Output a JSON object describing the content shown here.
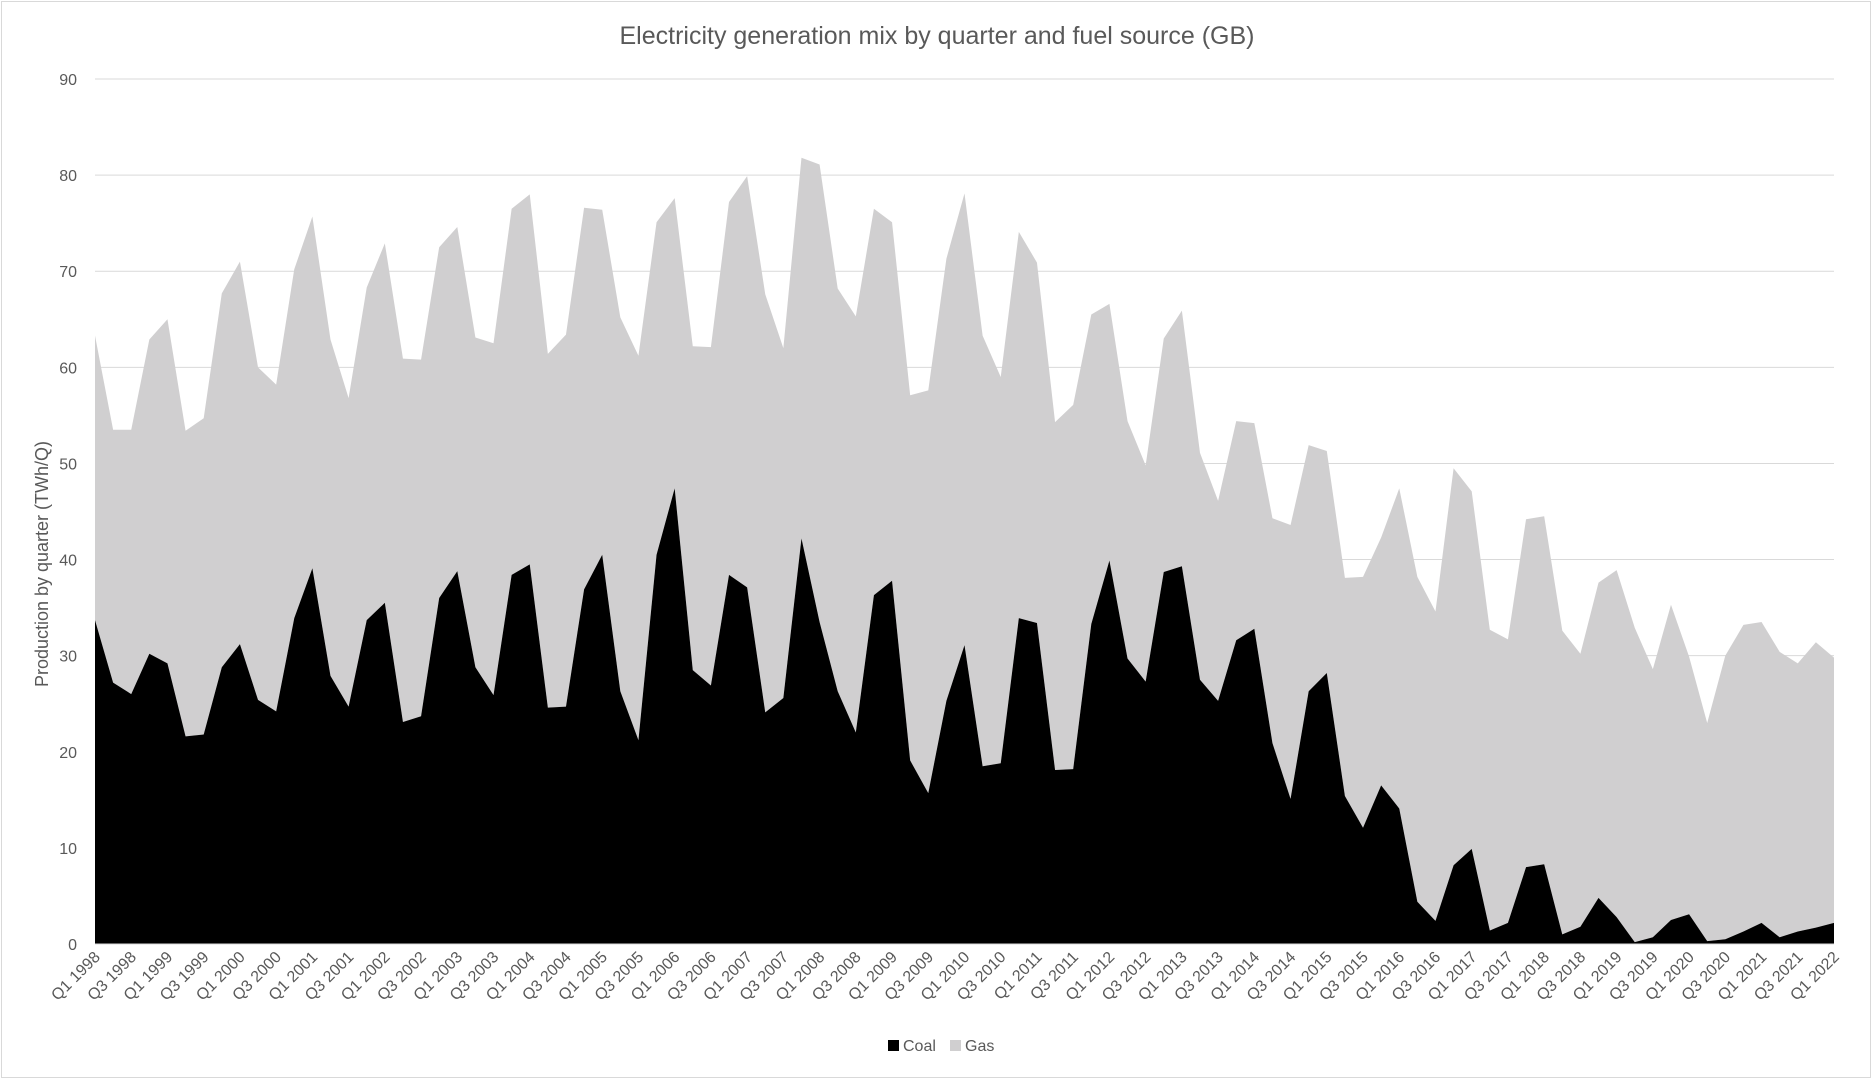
{
  "chart_data": {
    "type": "area",
    "stacked": true,
    "title": "Electricity generation mix by quarter and fuel source (GB)",
    "xlabel": "",
    "ylabel": "Production by quarter (TWh/Q)",
    "ylim": [
      0,
      90
    ],
    "yticks": [
      0,
      10,
      20,
      30,
      40,
      50,
      60,
      70,
      80,
      90
    ],
    "grid": true,
    "legend_position": "bottom",
    "categories": [
      "Q1 1998",
      "Q2 1998",
      "Q3 1998",
      "Q4 1998",
      "Q1 1999",
      "Q2 1999",
      "Q3 1999",
      "Q4 1999",
      "Q1 2000",
      "Q2 2000",
      "Q3 2000",
      "Q4 2000",
      "Q1 2001",
      "Q2 2001",
      "Q3 2001",
      "Q4 2001",
      "Q1 2002",
      "Q2 2002",
      "Q3 2002",
      "Q4 2002",
      "Q1 2003",
      "Q2 2003",
      "Q3 2003",
      "Q4 2003",
      "Q1 2004",
      "Q2 2004",
      "Q3 2004",
      "Q4 2004",
      "Q1 2005",
      "Q2 2005",
      "Q3 2005",
      "Q4 2005",
      "Q1 2006",
      "Q2 2006",
      "Q3 2006",
      "Q4 2006",
      "Q1 2007",
      "Q2 2007",
      "Q3 2007",
      "Q4 2007",
      "Q1 2008",
      "Q2 2008",
      "Q3 2008",
      "Q4 2008",
      "Q1 2009",
      "Q2 2009",
      "Q3 2009",
      "Q4 2009",
      "Q1 2010",
      "Q2 2010",
      "Q3 2010",
      "Q4 2010",
      "Q1 2011",
      "Q2 2011",
      "Q3 2011",
      "Q4 2011",
      "Q1 2012",
      "Q2 2012",
      "Q3 2012",
      "Q4 2012",
      "Q1 2013",
      "Q2 2013",
      "Q3 2013",
      "Q4 2013",
      "Q1 2014",
      "Q2 2014",
      "Q3 2014",
      "Q4 2014",
      "Q1 2015",
      "Q2 2015",
      "Q3 2015",
      "Q4 2015",
      "Q1 2016",
      "Q2 2016",
      "Q3 2016",
      "Q4 2016",
      "Q1 2017",
      "Q2 2017",
      "Q3 2017",
      "Q4 2017",
      "Q1 2018",
      "Q2 2018",
      "Q3 2018",
      "Q4 2018",
      "Q1 2019",
      "Q2 2019",
      "Q3 2019",
      "Q4 2019",
      "Q1 2020",
      "Q2 2020",
      "Q3 2020",
      "Q4 2020",
      "Q1 2021",
      "Q2 2021",
      "Q3 2021",
      "Q4 2021",
      "Q1 2022"
    ],
    "series": [
      {
        "name": "Coal",
        "color": "#000000",
        "values": [
          33.7,
          27.2,
          26.0,
          30.2,
          29.2,
          21.6,
          21.8,
          28.8,
          31.2,
          25.4,
          24.2,
          33.9,
          39.1,
          27.9,
          24.7,
          33.7,
          35.5,
          23.1,
          23.7,
          36.0,
          38.8,
          28.8,
          25.9,
          38.4,
          39.5,
          24.6,
          24.7,
          36.9,
          40.5,
          26.3,
          21.2,
          40.5,
          47.4,
          28.5,
          26.9,
          38.4,
          37.1,
          24.1,
          25.6,
          42.2,
          33.5,
          26.3,
          22.0,
          36.3,
          37.8,
          19.1,
          15.7,
          25.3,
          31.1,
          18.5,
          18.8,
          33.9,
          33.4,
          18.1,
          18.2,
          33.3,
          39.9,
          29.7,
          27.3,
          38.7,
          39.3,
          27.5,
          25.3,
          31.6,
          32.8,
          20.9,
          15.1,
          26.3,
          28.2,
          15.4,
          12.1,
          16.5,
          14.1,
          4.4,
          2.4,
          8.2,
          9.9,
          1.4,
          2.2,
          8.0,
          8.3,
          1.0,
          1.8,
          4.8,
          2.8,
          0.2,
          0.7,
          2.5,
          3.1,
          0.3,
          0.5,
          1.3,
          2.2,
          0.7,
          1.3,
          1.7,
          2.2
        ]
      },
      {
        "name": "Gas",
        "color": "#d0cfd0",
        "values": [
          29.6,
          26.3,
          27.5,
          32.7,
          35.8,
          31.8,
          32.9,
          38.9,
          39.8,
          34.6,
          34.0,
          36.3,
          36.6,
          35.0,
          32.1,
          34.6,
          37.4,
          37.8,
          37.1,
          36.5,
          35.8,
          34.3,
          36.6,
          38.1,
          38.5,
          36.8,
          38.7,
          39.7,
          35.9,
          38.9,
          40.0,
          34.6,
          30.2,
          33.7,
          35.2,
          38.8,
          42.8,
          43.5,
          36.4,
          39.6,
          47.6,
          41.9,
          43.3,
          40.2,
          37.3,
          38.0,
          41.9,
          46.0,
          47.0,
          44.8,
          40.2,
          40.2,
          37.5,
          36.2,
          37.9,
          32.2,
          26.7,
          24.7,
          22.5,
          24.3,
          26.6,
          23.6,
          20.8,
          22.8,
          21.4,
          23.4,
          28.5,
          25.6,
          23.1,
          22.7,
          26.1,
          25.8,
          33.3,
          33.8,
          32.2,
          41.3,
          37.2,
          31.3,
          29.5,
          36.2,
          36.2,
          31.6,
          28.4,
          32.8,
          36.1,
          32.7,
          27.9,
          32.8,
          26.8,
          22.7,
          29.5,
          31.9,
          31.3,
          29.7,
          27.9,
          29.7,
          27.6
        ]
      }
    ]
  }
}
